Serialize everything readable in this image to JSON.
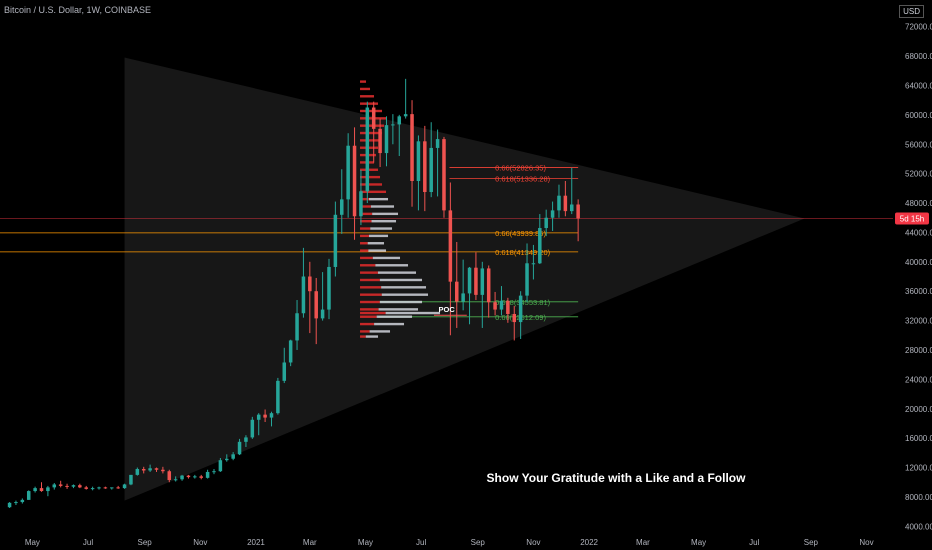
{
  "header": {
    "title": "Bitcoin / U.S. Dollar, 1W, COINBASE",
    "currency": "USD"
  },
  "colors": {
    "up": "#26a69a",
    "down": "#ef5350",
    "fib_red": "#f44336",
    "fib_orange": "#ff9800",
    "fib_green": "#4caf50",
    "price_line": "#f23645",
    "axis_text": "#b2b5be",
    "triangle": "#2a2a2a",
    "volume_up": "#d1d4dc",
    "volume_down": "#c62828"
  },
  "chart_data": {
    "type": "candlestick",
    "ylim": [
      3500,
      74000
    ],
    "y_ticks": [
      "4000.00",
      "8000.00",
      "12000.00",
      "16000.00",
      "20000.00",
      "24000.00",
      "28000.00",
      "32000.00",
      "36000.00",
      "40000.00",
      "44000.00",
      "48000.00",
      "52000.00",
      "56000.00",
      "60000.00",
      "64000.00",
      "68000.00",
      "72000.00"
    ],
    "y_tick_values": [
      4000,
      8000,
      12000,
      16000,
      20000,
      24000,
      28000,
      32000,
      36000,
      40000,
      44000,
      48000,
      52000,
      56000,
      60000,
      64000,
      68000,
      72000
    ],
    "x_start": "2020-04-01",
    "x_end": "2022-11-30",
    "x_ticks": [
      {
        "label": "May",
        "date": "2020-05-01"
      },
      {
        "label": "Jul",
        "date": "2020-07-01"
      },
      {
        "label": "Sep",
        "date": "2020-09-01"
      },
      {
        "label": "Nov",
        "date": "2020-11-01"
      },
      {
        "label": "2021",
        "date": "2021-01-01"
      },
      {
        "label": "Mar",
        "date": "2021-03-01"
      },
      {
        "label": "May",
        "date": "2021-05-01"
      },
      {
        "label": "Jul",
        "date": "2021-07-01"
      },
      {
        "label": "Sep",
        "date": "2021-09-01"
      },
      {
        "label": "Nov",
        "date": "2021-11-01"
      },
      {
        "label": "2022",
        "date": "2022-01-01"
      },
      {
        "label": "Mar",
        "date": "2022-03-01"
      },
      {
        "label": "May",
        "date": "2022-05-01"
      },
      {
        "label": "Jul",
        "date": "2022-07-01"
      },
      {
        "label": "Sep",
        "date": "2022-09-01"
      },
      {
        "label": "Nov",
        "date": "2022-11-01"
      }
    ],
    "current_price": 45900,
    "current_price_label": "5d 15h",
    "candles": [
      [
        6600,
        7300,
        6500,
        7200
      ],
      [
        7200,
        7500,
        6900,
        7300
      ],
      [
        7300,
        7800,
        7100,
        7600
      ],
      [
        7600,
        8900,
        7600,
        8800
      ],
      [
        8800,
        9400,
        8600,
        9200
      ],
      [
        9200,
        10000,
        8700,
        8800
      ],
      [
        8800,
        9500,
        8100,
        9300
      ],
      [
        9300,
        9900,
        9000,
        9700
      ],
      [
        9700,
        10200,
        9300,
        9500
      ],
      [
        9500,
        9800,
        9100,
        9400
      ],
      [
        9400,
        9700,
        9200,
        9600
      ],
      [
        9600,
        9800,
        9200,
        9300
      ],
      [
        9300,
        9500,
        9000,
        9100
      ],
      [
        9100,
        9400,
        8900,
        9200
      ],
      [
        9200,
        9400,
        9000,
        9300
      ],
      [
        9300,
        9400,
        9100,
        9200
      ],
      [
        9200,
        9300,
        9000,
        9300
      ],
      [
        9300,
        9500,
        9100,
        9200
      ],
      [
        9200,
        9800,
        9100,
        9700
      ],
      [
        9700,
        11000,
        9600,
        11000
      ],
      [
        11000,
        12000,
        10900,
        11800
      ],
      [
        11800,
        12100,
        11200,
        11600
      ],
      [
        11600,
        12400,
        11400,
        11900
      ],
      [
        11900,
        12000,
        11400,
        11700
      ],
      [
        11700,
        12100,
        11200,
        11500
      ],
      [
        11500,
        11700,
        10000,
        10300
      ],
      [
        10300,
        10800,
        10100,
        10400
      ],
      [
        10400,
        11000,
        10200,
        10900
      ],
      [
        10900,
        11000,
        10500,
        10700
      ],
      [
        10700,
        11000,
        10500,
        10800
      ],
      [
        10800,
        11000,
        10400,
        10600
      ],
      [
        10600,
        11700,
        10500,
        11400
      ],
      [
        11400,
        11800,
        11100,
        11500
      ],
      [
        11500,
        13300,
        11400,
        13000
      ],
      [
        13000,
        13800,
        12800,
        13200
      ],
      [
        13200,
        14100,
        13000,
        13800
      ],
      [
        13800,
        15900,
        13700,
        15500
      ],
      [
        15500,
        16400,
        14800,
        16100
      ],
      [
        16100,
        18900,
        15900,
        18500
      ],
      [
        18500,
        19400,
        16400,
        19200
      ],
      [
        19200,
        19900,
        18200,
        18800
      ],
      [
        18800,
        19600,
        17600,
        19400
      ],
      [
        19400,
        24200,
        19200,
        23800
      ],
      [
        23800,
        28300,
        23500,
        26300
      ],
      [
        26300,
        29400,
        25800,
        29300
      ],
      [
        29300,
        34800,
        28000,
        33000
      ],
      [
        33000,
        41900,
        32400,
        38000
      ],
      [
        38000,
        40000,
        30300,
        36000
      ],
      [
        36000,
        37800,
        28800,
        32300
      ],
      [
        32300,
        38600,
        32000,
        33500
      ],
      [
        33500,
        40400,
        32200,
        39300
      ],
      [
        39300,
        48200,
        38000,
        46400
      ],
      [
        46400,
        52600,
        43800,
        48500
      ],
      [
        48500,
        57500,
        46000,
        55800
      ],
      [
        55800,
        58300,
        43000,
        46200
      ],
      [
        46200,
        52500,
        45000,
        49600
      ],
      [
        49600,
        61800,
        48000,
        61000
      ],
      [
        61000,
        61800,
        53500,
        58100
      ],
      [
        58100,
        59500,
        52900,
        54800
      ],
      [
        54800,
        59800,
        53000,
        58600
      ],
      [
        58600,
        60100,
        56000,
        58700
      ],
      [
        58700,
        60000,
        54400,
        59800
      ],
      [
        59800,
        64900,
        59500,
        60100
      ],
      [
        60100,
        62000,
        47500,
        51000
      ],
      [
        51000,
        57200,
        47000,
        56400
      ],
      [
        56400,
        58500,
        46900,
        49500
      ],
      [
        49500,
        59000,
        48800,
        55500
      ],
      [
        55500,
        58000,
        48900,
        56700
      ],
      [
        56700,
        57000,
        46000,
        47000
      ],
      [
        47000,
        50800,
        30000,
        37300
      ],
      [
        37300,
        42700,
        31000,
        34600
      ],
      [
        34600,
        40300,
        33400,
        35700
      ],
      [
        35700,
        39300,
        31500,
        39200
      ],
      [
        39200,
        41300,
        34800,
        35500
      ],
      [
        35500,
        40000,
        31000,
        39100
      ],
      [
        39100,
        39500,
        32400,
        34500
      ],
      [
        34500,
        35900,
        32700,
        33500
      ],
      [
        33500,
        36700,
        32700,
        34700
      ],
      [
        34700,
        35100,
        31700,
        32900
      ],
      [
        32900,
        34000,
        29300,
        31800
      ],
      [
        31800,
        36000,
        29500,
        35400
      ],
      [
        35400,
        42500,
        34500,
        39800
      ],
      [
        39800,
        42300,
        37600,
        39800
      ],
      [
        39800,
        46500,
        39700,
        44600
      ],
      [
        44600,
        47100,
        43500,
        46000
      ],
      [
        46000,
        48200,
        44200,
        47000
      ],
      [
        47000,
        50500,
        46000,
        49000
      ],
      [
        49000,
        51000,
        46200,
        46900
      ],
      [
        46900,
        52800,
        46500,
        47800
      ],
      [
        47800,
        48500,
        42800,
        45900
      ]
    ],
    "fib_levels": [
      {
        "label": "0.66(52826.35)",
        "value": 52826.35,
        "color": "fib_red"
      },
      {
        "label": "0.618(51336.28)",
        "value": 51336.28,
        "color": "fib_red"
      },
      {
        "label": "0.66(43939.85)",
        "value": 43939.85,
        "color": "fib_orange"
      },
      {
        "label": "0.618(41349.20)",
        "value": 41349.2,
        "color": "fib_orange"
      },
      {
        "label": "0.618(34553.81)",
        "value": 34553.81,
        "color": "fib_green"
      },
      {
        "label": "0.66(32512.09)",
        "value": 32512.09,
        "color": "fib_green"
      }
    ],
    "poc_label": "POC",
    "poc_value": 33000,
    "annotation": "Show Your Gratitude with a Like and a Follow"
  }
}
